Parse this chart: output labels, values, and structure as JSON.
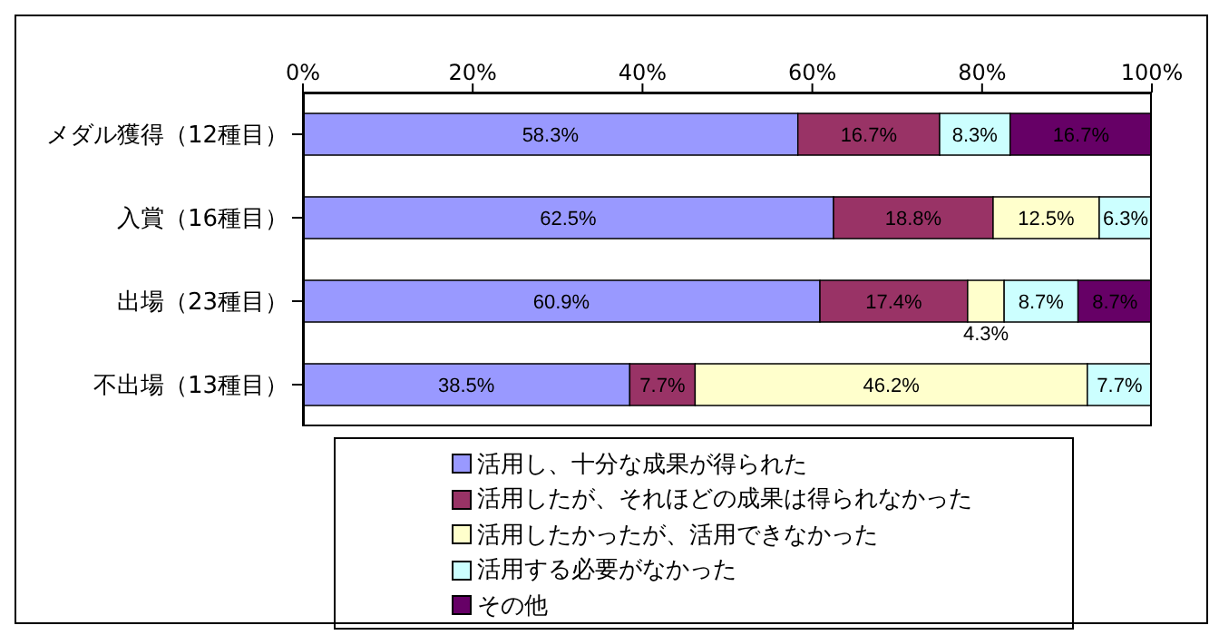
{
  "chart_data": {
    "type": "bar",
    "orientation": "horizontal",
    "stacked": true,
    "categories": [
      "メダル獲得（12種目）",
      "入賞（16種目）",
      "出場（23種目）",
      "不出場（13種目）"
    ],
    "series": [
      {
        "name": "活用し、十分な成果が得られた",
        "color": "#9999ff",
        "values": [
          58.3,
          62.5,
          60.9,
          38.5
        ],
        "value_labels": [
          "58.3%",
          "62.5%",
          "60.9%",
          "38.5%"
        ]
      },
      {
        "name": "活用したが、それほどの成果は得られなかった",
        "color": "#993366",
        "values": [
          16.7,
          18.8,
          17.4,
          7.7
        ],
        "value_labels": [
          "16.7%",
          "18.8%",
          "17.4%",
          "7.7%"
        ]
      },
      {
        "name": "活用したかったが、活用できなかった",
        "color": "#ffffcc",
        "values": [
          null,
          12.5,
          4.3,
          46.2
        ],
        "value_labels": [
          null,
          "12.5%",
          "4.3%",
          "46.2%"
        ]
      },
      {
        "name": "活用する必要がなかった",
        "color": "#ccffff",
        "values": [
          8.3,
          6.3,
          8.7,
          7.7
        ],
        "value_labels": [
          "8.3%",
          "6.3%",
          "8.7%",
          "7.7%"
        ]
      },
      {
        "name": "その他",
        "color": "#660066",
        "values": [
          16.7,
          null,
          8.7,
          null
        ],
        "value_labels": [
          "16.7%",
          null,
          "8.7%",
          null
        ]
      }
    ],
    "xlim": [
      0,
      100
    ],
    "xticks": [
      {
        "value": 0,
        "label": "0%"
      },
      {
        "value": 20,
        "label": "20%"
      },
      {
        "value": 40,
        "label": "40%"
      },
      {
        "value": 60,
        "label": "60%"
      },
      {
        "value": 80,
        "label": "80%"
      },
      {
        "value": 100,
        "label": "100%"
      }
    ],
    "legend": "bottom"
  }
}
